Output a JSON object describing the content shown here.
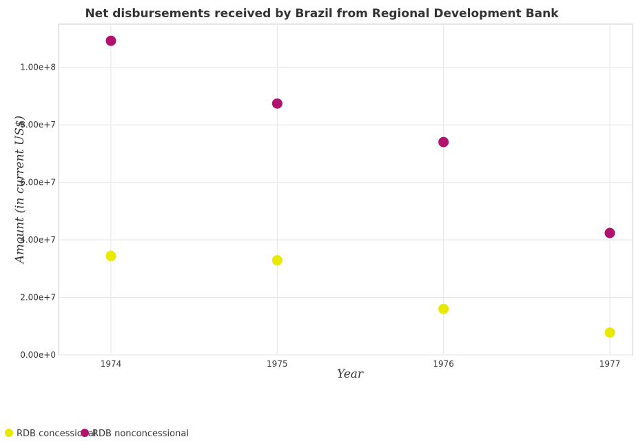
{
  "chart_data": {
    "type": "scatter",
    "title": "Net disbursements received by Brazil from Regional Development Bank",
    "xlabel": "Year",
    "ylabel": "Amount (in current US$)",
    "categories": [
      "1974",
      "1975",
      "1976",
      "1977"
    ],
    "ylim": [
      0,
      115000000
    ],
    "yticks": [
      0,
      20000000,
      40000000,
      60000000,
      80000000,
      100000000
    ],
    "ytick_labels": [
      "0.00e+0",
      "2.00e+7",
      "4.00e+7",
      "6.00e+7",
      "8.00e+7",
      "1.00e+8"
    ],
    "grid": true,
    "legend_position": "bottom-left",
    "series": [
      {
        "name": "RDB concessional",
        "color": "#e8e800",
        "values": [
          34400000,
          32900000,
          16000000,
          7800000
        ]
      },
      {
        "name": "RDB nonconcessional",
        "color": "#b0126e",
        "values": [
          109200000,
          87400000,
          74000000,
          42400000
        ]
      }
    ]
  }
}
